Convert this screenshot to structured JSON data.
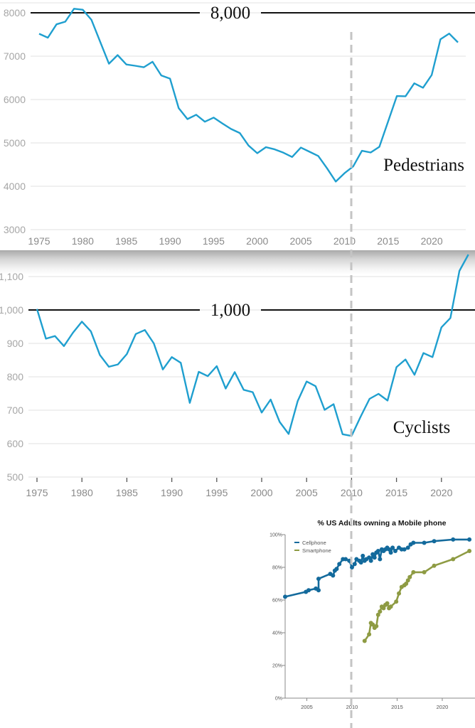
{
  "chart_data": [
    {
      "type": "line",
      "id": "pedestrians",
      "title": "",
      "series_label": "Pedestrians",
      "reference_line": {
        "value": 8000,
        "label": "8,000"
      },
      "xlabel": "",
      "ylabel": "",
      "xlim": [
        1974,
        2024
      ],
      "ylim": [
        3000,
        8000
      ],
      "x_ticks": [
        1975,
        1980,
        1985,
        1990,
        1995,
        2000,
        2005,
        2010,
        2015,
        2020
      ],
      "x_tick_labels": [
        "1975",
        "1980",
        "1985",
        "1990",
        "1995",
        "2000",
        "2005",
        "2010",
        "2015",
        "2020"
      ],
      "y_ticks": [
        3000,
        4000,
        5000,
        6000,
        7000,
        8000
      ],
      "y_tick_labels": [
        "3000",
        "4000",
        "5000",
        "6000",
        "7000",
        "8000"
      ],
      "grid": true,
      "color": "#1f9fcf",
      "x": [
        1975,
        1976,
        1977,
        1978,
        1979,
        1980,
        1981,
        1982,
        1983,
        1984,
        1985,
        1986,
        1987,
        1988,
        1989,
        1990,
        1991,
        1992,
        1993,
        1994,
        1995,
        1996,
        1997,
        1998,
        1999,
        2000,
        2001,
        2002,
        2003,
        2004,
        2005,
        2006,
        2007,
        2008,
        2009,
        2010,
        2011,
        2012,
        2013,
        2014,
        2015,
        2016,
        2017,
        2018,
        2019,
        2020,
        2021,
        2022,
        2023
      ],
      "values": [
        7516,
        7427,
        7734,
        7795,
        8094,
        8070,
        7837,
        7331,
        6826,
        7025,
        6808,
        6779,
        6745,
        6870,
        6556,
        6482,
        5801,
        5549,
        5649,
        5489,
        5584,
        5449,
        5321,
        5228,
        4939,
        4763,
        4901,
        4851,
        4774,
        4675,
        4892,
        4795,
        4699,
        4414,
        4109,
        4302,
        4457,
        4818,
        4779,
        4910,
        5494,
        6080,
        6075,
        6374,
        6272,
        6565,
        7388,
        7522,
        7318
      ]
    },
    {
      "type": "line",
      "id": "cyclists",
      "title": "",
      "series_label": "Cyclists",
      "reference_line": {
        "value": 1000,
        "label": "1,000"
      },
      "xlabel": "",
      "ylabel": "",
      "xlim": [
        1974,
        2024
      ],
      "ylim": [
        500,
        1100
      ],
      "x_ticks": [
        1975,
        1980,
        1985,
        1990,
        1995,
        2000,
        2005,
        2010,
        2015,
        2020
      ],
      "x_tick_labels": [
        "1975",
        "1980",
        "1985",
        "1990",
        "1995",
        "2000",
        "2005",
        "2010",
        "2015",
        "2020"
      ],
      "y_ticks": [
        500,
        600,
        700,
        800,
        900,
        1000,
        1100
      ],
      "y_tick_labels": [
        "500",
        "600",
        "700",
        "800",
        "900",
        "1,000",
        "1,100"
      ],
      "grid": true,
      "color": "#1f9fcf",
      "x": [
        1975,
        1976,
        1977,
        1978,
        1979,
        1980,
        1981,
        1982,
        1983,
        1984,
        1985,
        1986,
        1987,
        1988,
        1989,
        1990,
        1991,
        1992,
        1993,
        1994,
        1995,
        1996,
        1997,
        1998,
        1999,
        2000,
        2001,
        2002,
        2003,
        2004,
        2005,
        2006,
        2007,
        2008,
        2009,
        2010,
        2011,
        2012,
        2013,
        2014,
        2015,
        2016,
        2017,
        2018,
        2019,
        2020,
        2021,
        2022,
        2023
      ],
      "values": [
        1003,
        914,
        922,
        892,
        932,
        965,
        936,
        865,
        830,
        837,
        868,
        928,
        940,
        900,
        822,
        859,
        842,
        722,
        815,
        802,
        832,
        765,
        814,
        761,
        754,
        693,
        732,
        665,
        629,
        727,
        786,
        772,
        701,
        718,
        628,
        623,
        680,
        734,
        749,
        729,
        829,
        852,
        806,
        871,
        859,
        948,
        976,
        1117,
        1166
      ]
    },
    {
      "type": "line",
      "id": "mobile-phone-ownership",
      "title": "% US Adults owning a Mobile phone",
      "xlabel": "",
      "ylabel": "",
      "xlim": [
        2002.6,
        2023
      ],
      "ylim": [
        0,
        100
      ],
      "x_ticks": [
        2005,
        2010,
        2015,
        2020
      ],
      "x_tick_labels": [
        "2005",
        "2010",
        "2015",
        "2020"
      ],
      "y_ticks": [
        0,
        20,
        40,
        60,
        80,
        100
      ],
      "y_tick_labels": [
        "0%",
        "20%",
        "40%",
        "60%",
        "80%",
        "100%"
      ],
      "grid": false,
      "legend_position": "top-left",
      "series": [
        {
          "name": "Cellphone",
          "color": "#136a9c",
          "x": [
            2002.6,
            2004.9,
            2005.2,
            2006.0,
            2006.3,
            2006.3,
            2007.6,
            2007.9,
            2008.1,
            2008.3,
            2008.6,
            2009.0,
            2009.3,
            2009.7,
            2010.0,
            2010.3,
            2010.5,
            2010.8,
            2011.0,
            2011.2,
            2011.4,
            2011.6,
            2011.9,
            2012.1,
            2012.3,
            2012.5,
            2012.7,
            2012.9,
            2013.1,
            2013.3,
            2013.5,
            2013.7,
            2013.9,
            2014.1,
            2014.3,
            2014.5,
            2014.8,
            2015.2,
            2015.5,
            2015.8,
            2016.2,
            2016.5,
            2016.8,
            2018.0,
            2019.1,
            2021.2,
            2023.0
          ],
          "values": [
            62,
            65,
            66,
            67,
            66,
            73,
            76,
            75,
            78,
            79,
            82,
            85,
            85,
            84,
            80,
            82,
            85,
            84,
            83,
            87,
            84,
            85,
            86,
            84,
            88,
            86,
            89,
            90,
            85,
            91,
            90,
            91,
            92,
            91,
            89,
            92,
            90,
            92,
            91,
            91,
            92,
            94,
            95,
            95,
            96,
            97,
            97
          ]
        },
        {
          "name": "Smartphone",
          "color": "#8e9b43",
          "x": [
            2011.4,
            2011.9,
            2012.1,
            2012.3,
            2012.5,
            2012.7,
            2012.9,
            2013.1,
            2013.3,
            2013.5,
            2013.7,
            2013.9,
            2014.1,
            2014.3,
            2014.9,
            2015.2,
            2015.5,
            2015.8,
            2016.0,
            2016.2,
            2016.4,
            2016.8,
            2018.0,
            2019.1,
            2021.2,
            2023.0
          ],
          "values": [
            35,
            39,
            46,
            45,
            43,
            44,
            51,
            53,
            56,
            55,
            57,
            58,
            55,
            56,
            59,
            64,
            68,
            69,
            70,
            72,
            74,
            77,
            77,
            81,
            85,
            90
          ]
        }
      ]
    }
  ],
  "annotations": {
    "dashed_marker_year": 2010
  }
}
